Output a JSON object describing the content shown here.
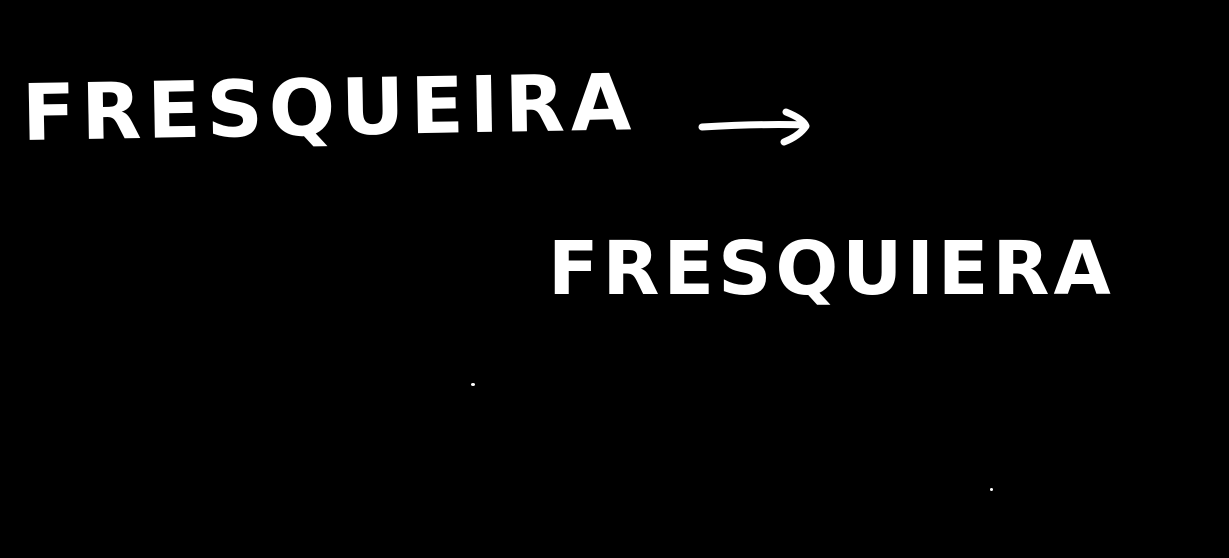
{
  "background_color": "#000000",
  "ink_color": "#ffffff",
  "words": {
    "original": "FRESQUEIRA",
    "corrected": "FRESQUIERA"
  },
  "arrow_icon": "right-arrow-icon"
}
